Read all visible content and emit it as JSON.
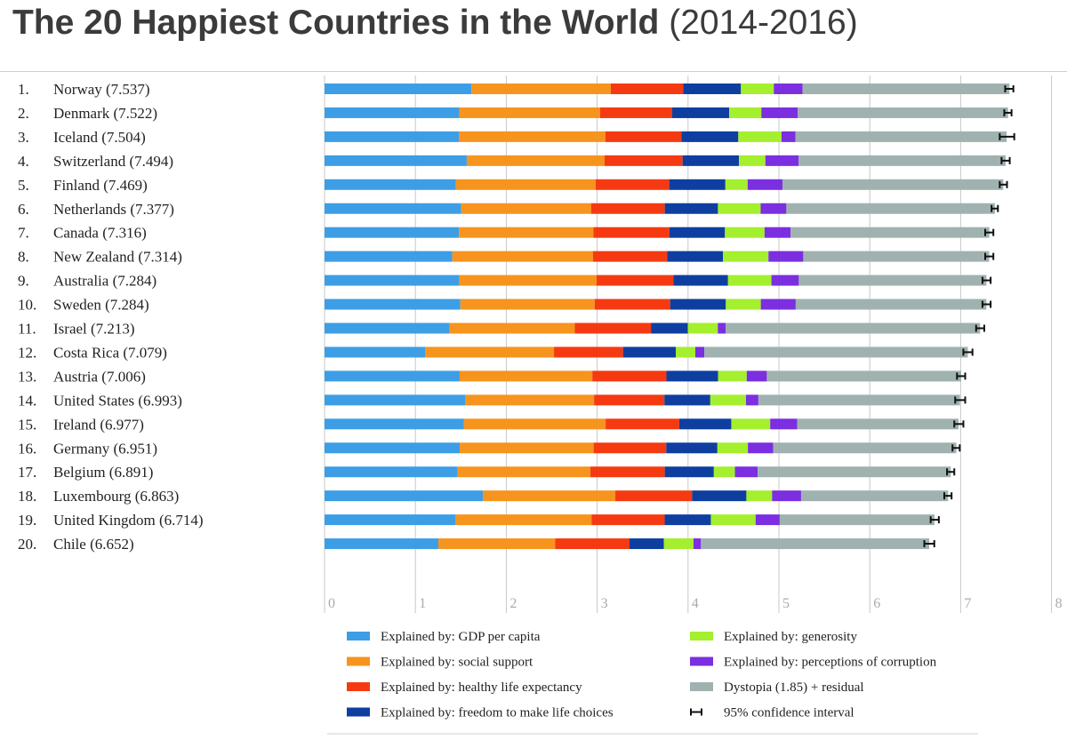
{
  "chart_data": {
    "type": "bar",
    "orientation": "horizontal",
    "stacked": true,
    "title": "The 20 Happiest Countries in the World",
    "subtitle": "(2014-2016)",
    "xlim": [
      0,
      8
    ],
    "xticks": [
      "0",
      "1",
      "2",
      "3",
      "4",
      "5",
      "6",
      "7",
      "8"
    ],
    "grid": true,
    "legend_position": "bottom",
    "categories": [
      {
        "rank": "1.",
        "label": "Norway (7.537)",
        "score": 7.537
      },
      {
        "rank": "2.",
        "label": "Denmark (7.522)",
        "score": 7.522
      },
      {
        "rank": "3.",
        "label": "Iceland (7.504)",
        "score": 7.504
      },
      {
        "rank": "4.",
        "label": "Switzerland (7.494)",
        "score": 7.494
      },
      {
        "rank": "5.",
        "label": "Finland (7.469)",
        "score": 7.469
      },
      {
        "rank": "6.",
        "label": "Netherlands (7.377)",
        "score": 7.377
      },
      {
        "rank": "7.",
        "label": "Canada (7.316)",
        "score": 7.316
      },
      {
        "rank": "8.",
        "label": "New Zealand (7.314)",
        "score": 7.314
      },
      {
        "rank": "9.",
        "label": "Australia (7.284)",
        "score": 7.284
      },
      {
        "rank": "10.",
        "label": "Sweden (7.284)",
        "score": 7.284
      },
      {
        "rank": "11.",
        "label": "Israel (7.213)",
        "score": 7.213
      },
      {
        "rank": "12.",
        "label": "Costa Rica (7.079)",
        "score": 7.079
      },
      {
        "rank": "13.",
        "label": "Austria (7.006)",
        "score": 7.006
      },
      {
        "rank": "14.",
        "label": "United States (6.993)",
        "score": 6.993
      },
      {
        "rank": "15.",
        "label": "Ireland (6.977)",
        "score": 6.977
      },
      {
        "rank": "16.",
        "label": "Germany (6.951)",
        "score": 6.951
      },
      {
        "rank": "17.",
        "label": "Belgium (6.891)",
        "score": 6.891
      },
      {
        "rank": "18.",
        "label": "Luxembourg (6.863)",
        "score": 6.863
      },
      {
        "rank": "19.",
        "label": "United Kingdom (6.714)",
        "score": 6.714
      },
      {
        "rank": "20.",
        "label": "Chile (6.652)",
        "score": 6.652
      }
    ],
    "series": [
      {
        "name": "Explained by: GDP per capita",
        "color": "#3d9ee6",
        "values": [
          1.616,
          1.482,
          1.481,
          1.565,
          1.444,
          1.504,
          1.479,
          1.406,
          1.484,
          1.494,
          1.376,
          1.109,
          1.487,
          1.546,
          1.535,
          1.488,
          1.464,
          1.742,
          1.442,
          1.253
        ]
      },
      {
        "name": "Explained by: social support",
        "color": "#f7941d",
        "values": [
          1.534,
          1.551,
          1.611,
          1.517,
          1.54,
          1.429,
          1.481,
          1.548,
          1.51,
          1.478,
          1.378,
          1.416,
          1.46,
          1.42,
          1.558,
          1.473,
          1.462,
          1.458,
          1.496,
          1.284
        ]
      },
      {
        "name": "Explained by: healthy life expectancy",
        "color": "#f53a12",
        "values": [
          0.797,
          0.793,
          0.834,
          0.858,
          0.809,
          0.811,
          0.835,
          0.817,
          0.844,
          0.831,
          0.838,
          0.76,
          0.815,
          0.774,
          0.81,
          0.799,
          0.818,
          0.845,
          0.805,
          0.819
        ]
      },
      {
        "name": "Explained by: freedom to make life choices",
        "color": "#0e3fa0",
        "values": [
          0.635,
          0.626,
          0.627,
          0.62,
          0.618,
          0.585,
          0.611,
          0.614,
          0.602,
          0.613,
          0.406,
          0.58,
          0.568,
          0.505,
          0.573,
          0.563,
          0.54,
          0.597,
          0.508,
          0.377
        ]
      },
      {
        "name": "Explained by: generosity",
        "color": "#a4ef2e",
        "values": [
          0.362,
          0.355,
          0.476,
          0.291,
          0.245,
          0.47,
          0.436,
          0.5,
          0.478,
          0.385,
          0.33,
          0.215,
          0.316,
          0.393,
          0.428,
          0.336,
          0.232,
          0.283,
          0.493,
          0.327
        ]
      },
      {
        "name": "Explained by: perceptions of corruption",
        "color": "#7b2fe0",
        "values": [
          0.316,
          0.401,
          0.154,
          0.367,
          0.383,
          0.283,
          0.287,
          0.383,
          0.301,
          0.384,
          0.085,
          0.1,
          0.221,
          0.136,
          0.298,
          0.277,
          0.251,
          0.319,
          0.265,
          0.082
        ]
      },
      {
        "name": "Dystopia (1.85) + residual",
        "color": "#9fb2b0",
        "values": [
          2.277,
          2.314,
          2.323,
          2.277,
          2.43,
          2.295,
          2.187,
          2.046,
          2.065,
          2.098,
          2.801,
          2.899,
          2.139,
          2.218,
          1.775,
          2.016,
          2.124,
          1.618,
          1.704,
          2.512
        ]
      }
    ],
    "confidence_interval": {
      "name": "95% confidence interval",
      "low": [
        7.49,
        7.48,
        7.43,
        7.45,
        7.43,
        7.34,
        7.27,
        7.27,
        7.24,
        7.24,
        7.17,
        7.03,
        6.96,
        6.94,
        6.93,
        6.91,
        6.85,
        6.82,
        6.67,
        6.6
      ],
      "high": [
        7.58,
        7.56,
        7.59,
        7.54,
        7.51,
        7.41,
        7.36,
        7.36,
        7.33,
        7.33,
        7.26,
        7.13,
        7.05,
        7.05,
        7.03,
        6.99,
        6.93,
        6.9,
        6.76,
        6.71
      ]
    }
  }
}
